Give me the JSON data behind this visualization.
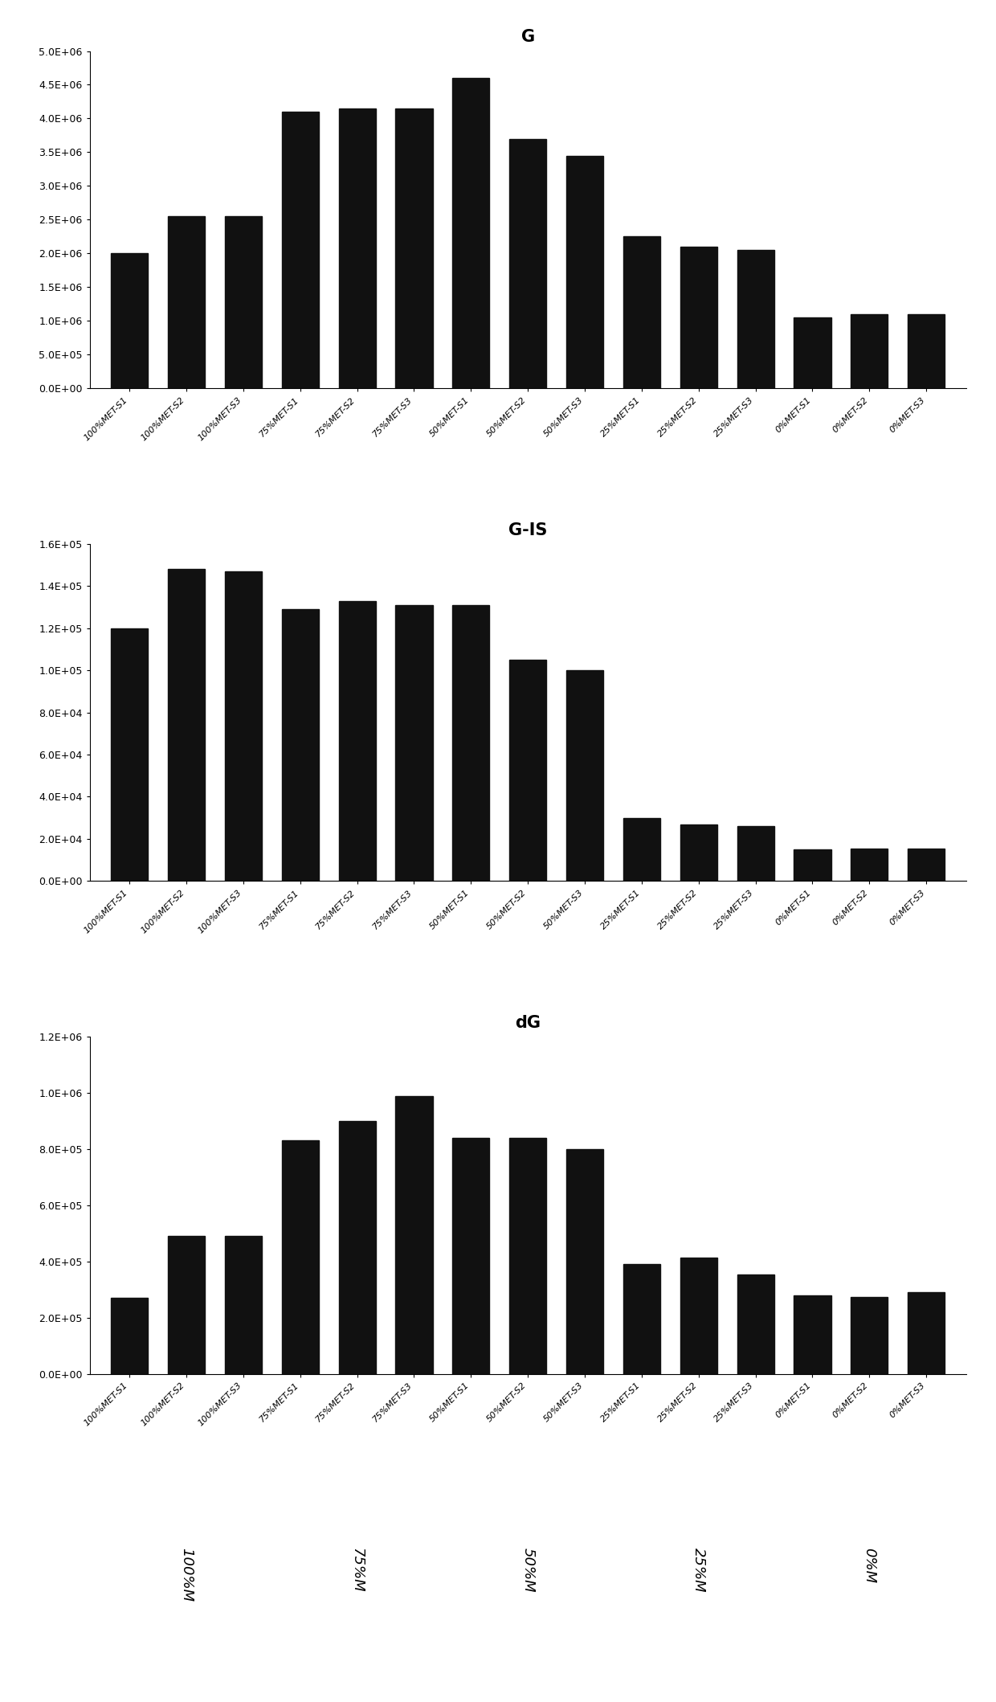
{
  "charts": [
    {
      "title": "G",
      "categories": [
        "100%MET-S1",
        "100%MET-S2",
        "100%MET-S3",
        "75%MET-S1",
        "75%MET-S2",
        "75%MET-S3",
        "50%MET-S1",
        "50%MET-S2",
        "50%MET-S3",
        "25%MET-S1",
        "25%MET-S2",
        "25%MET-S3",
        "0%MET-S1",
        "0%MET-S2",
        "0%MET-S3"
      ],
      "values": [
        2000000,
        2550000,
        2550000,
        4100000,
        4150000,
        4150000,
        4600000,
        3700000,
        3450000,
        2250000,
        2100000,
        2050000,
        1050000,
        1100000,
        1100000
      ],
      "ylim": [
        0,
        5000000
      ],
      "yticks": [
        0,
        500000,
        1000000,
        1500000,
        2000000,
        2500000,
        3000000,
        3500000,
        4000000,
        4500000,
        5000000
      ],
      "ytick_labels": [
        "0.0E+00",
        "5.0E+05",
        "1.0E+06",
        "1.5E+06",
        "2.0E+06",
        "2.5E+06",
        "3.0E+06",
        "3.5E+06",
        "4.0E+06",
        "4.5E+06",
        "5.0E+06"
      ]
    },
    {
      "title": "G-IS",
      "categories": [
        "100%MET-S1",
        "100%MET-S2",
        "100%MET-S3",
        "75%MET-S1",
        "75%MET-S2",
        "75%MET-S3",
        "50%MET-S1",
        "50%MET-S2",
        "50%MET-S3",
        "25%MET-S1",
        "25%MET-S2",
        "25%MET-S3",
        "0%MET-S1",
        "0%MET-S2",
        "0%MET-S3"
      ],
      "values": [
        120000,
        148000,
        147000,
        129000,
        133000,
        131000,
        131000,
        105000,
        100000,
        30000,
        27000,
        26000,
        15000,
        15500,
        15500
      ],
      "ylim": [
        0,
        160000
      ],
      "yticks": [
        0,
        20000,
        40000,
        60000,
        80000,
        100000,
        120000,
        140000,
        160000
      ],
      "ytick_labels": [
        "0.0E+00",
        "2.0E+04",
        "4.0E+04",
        "6.0E+04",
        "8.0E+04",
        "1.0E+05",
        "1.2E+05",
        "1.4E+05",
        "1.6E+05"
      ]
    },
    {
      "title": "dG",
      "categories": [
        "100%MET-S1",
        "100%MET-S2",
        "100%MET-S3",
        "75%MET-S1",
        "75%MET-S2",
        "75%MET-S3",
        "50%MET-S1",
        "50%MET-S2",
        "50%MET-S3",
        "25%MET-S1",
        "25%MET-S2",
        "25%MET-S3",
        "0%MET-S1",
        "0%MET-S2",
        "0%MET-S3"
      ],
      "values": [
        270000,
        490000,
        490000,
        830000,
        900000,
        990000,
        840000,
        840000,
        800000,
        390000,
        415000,
        355000,
        280000,
        275000,
        290000
      ],
      "ylim": [
        0,
        1200000
      ],
      "yticks": [
        0,
        200000,
        400000,
        600000,
        800000,
        1000000,
        1200000
      ],
      "ytick_labels": [
        "0.0E+00",
        "2.0E+05",
        "4.0E+05",
        "6.0E+05",
        "8.0E+05",
        "1.0E+06",
        "1.2E+06"
      ]
    }
  ],
  "x_group_labels": [
    "100%M",
    "75%M",
    "50%M",
    "25%M",
    "0%M"
  ],
  "x_group_bar_centers": [
    1,
    4,
    7,
    10,
    13
  ],
  "bar_color": "#111111",
  "bar_width": 0.65,
  "title_fontsize": 15,
  "tick_fontsize": 9,
  "xtick_fontsize": 8,
  "group_label_fontsize": 13,
  "background_color": "#ffffff"
}
